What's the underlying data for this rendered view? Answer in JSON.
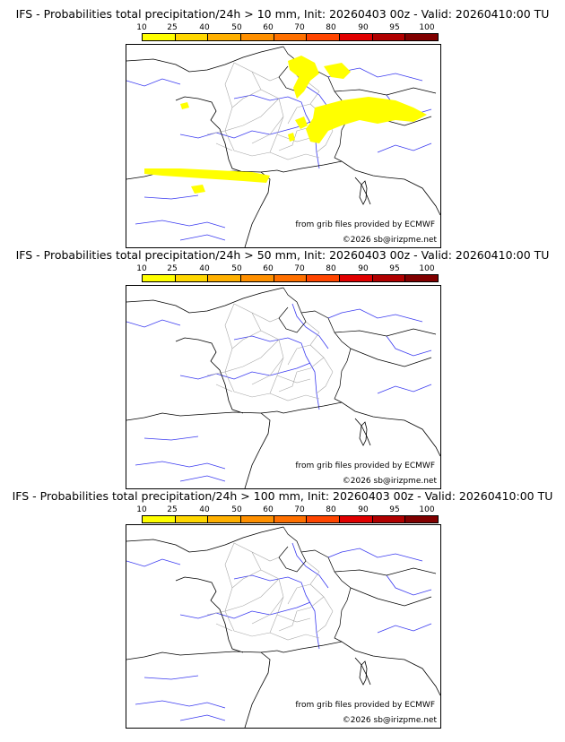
{
  "scale": {
    "ticks": [
      "10",
      "25",
      "40",
      "50",
      "60",
      "70",
      "80",
      "90",
      "95",
      "100"
    ],
    "colors": [
      "#ffff00",
      "#ffd700",
      "#ffb000",
      "#ff9000",
      "#ff7000",
      "#ff4500",
      "#e00000",
      "#b00000",
      "#800000"
    ]
  },
  "credits": {
    "source": "from grib files provided by ECMWF",
    "copyright": "©2026 sb@irizpme.net"
  },
  "panels": [
    {
      "title": "IFS - Probabilities total precipitation/24h > 10 mm, Init: 20260403 00z - Valid: 20260410:00 TU",
      "has_precip": true
    },
    {
      "title": "IFS - Probabilities total precipitation/24h > 50 mm, Init: 20260403 00z - Valid: 20260410:00 TU",
      "has_precip": false
    },
    {
      "title": "IFS - Probabilities total precipitation/24h > 100 mm, Init: 20260403 00z - Valid: 20260410:00 TU",
      "has_precip": false
    }
  ]
}
